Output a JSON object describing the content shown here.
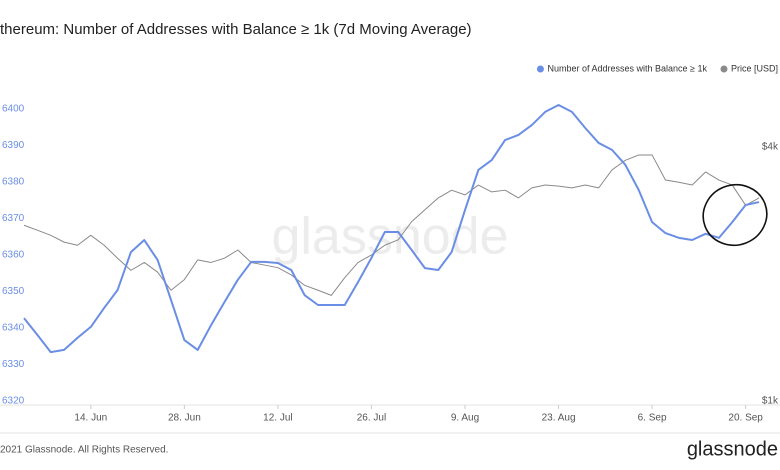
{
  "chart_data": {
    "type": "line",
    "title": "thereum: Number of Addresses with Balance ≥ 1k (7d Moving Average)",
    "categories": [
      null,
      null,
      null,
      null,
      null,
      "14. Jun",
      null,
      null,
      null,
      null,
      null,
      null,
      "28. Jun",
      null,
      null,
      null,
      null,
      null,
      null,
      "12. Jul",
      null,
      null,
      null,
      null,
      null,
      null,
      "26. Jul",
      null,
      null,
      null,
      null,
      null,
      null,
      "9. Aug",
      null,
      null,
      null,
      null,
      null,
      null,
      "23. Aug",
      null,
      null,
      null,
      null,
      null,
      null,
      "6. Sep",
      null,
      null,
      null,
      null,
      null,
      null,
      "20. Sep",
      null
    ],
    "series": [
      {
        "name": "Number of Addresses with Balance ≥ 1k",
        "color": "#6a8ee6",
        "axis": "y",
        "values": [
          6342.7,
          6338.1,
          6333.4,
          6334,
          6337.3,
          6340.3,
          6345.5,
          6350.4,
          6360.8,
          6364.1,
          6358.6,
          6347.7,
          6336.7,
          6334,
          6340.8,
          6347.1,
          6353.2,
          6358.1,
          6358.1,
          6357.8,
          6355.9,
          6349,
          6346.3,
          6346.3,
          6346.3,
          6352.6,
          6359.2,
          6366.3,
          6366.3,
          6361.4,
          6356.4,
          6355.9,
          6360.8,
          6372.3,
          6383.3,
          6386,
          6391.5,
          6392.9,
          6395.6,
          6399.2,
          6401.1,
          6399.2,
          6394.8,
          6390.7,
          6388.8,
          6384.7,
          6377.8,
          6369,
          6366,
          6364.7,
          6364.1,
          6365.8,
          6364.7,
          6369,
          6373.7,
          6374.5
        ]
      },
      {
        "name": "Price [USD]",
        "color": "#8a8a8a",
        "axis": "y2",
        "values": [
          2610,
          2540,
          2470,
          2380,
          2340,
          2470,
          2340,
          2180,
          2040,
          2130,
          2020,
          1830,
          1940,
          2160,
          2130,
          2180,
          2280,
          2130,
          2100,
          2070,
          1990,
          1880,
          1830,
          1780,
          1960,
          2130,
          2220,
          2340,
          2410,
          2660,
          2840,
          3030,
          3160,
          3080,
          3250,
          3130,
          3160,
          3030,
          3200,
          3250,
          3230,
          3200,
          3250,
          3200,
          3530,
          3720,
          3830,
          3830,
          3340,
          3300,
          3250,
          3490,
          3340,
          3250,
          2910,
          3030
        ]
      }
    ],
    "ylim": [
      6320,
      6404
    ],
    "yticks": [
      6320,
      6330,
      6340,
      6350,
      6360,
      6370,
      6380,
      6390,
      6400
    ],
    "y2lim": [
      1000,
      5330
    ],
    "y2scale": "log",
    "y2ticks": [
      {
        "value": 1000,
        "label": "$1k"
      },
      {
        "value": 4000,
        "label": "$4k"
      }
    ],
    "legend": "top-right",
    "grid": false
  },
  "watermark": "glassnode",
  "footer": {
    "copyright": "2021 Glassnode. All Rights Reserved.",
    "logo": "glassnode"
  }
}
